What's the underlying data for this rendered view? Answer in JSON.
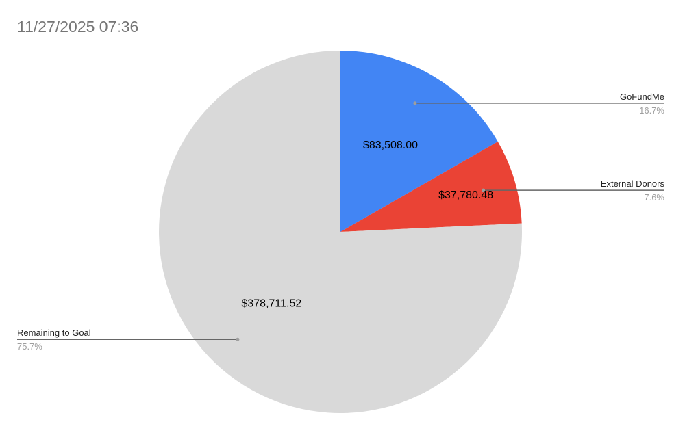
{
  "title": "11/27/2025 07:36",
  "chart_data": {
    "type": "pie",
    "title": "11/27/2025 07:36",
    "slices": [
      {
        "name": "GoFundMe",
        "value": 83508.0,
        "value_label": "$83,508.00",
        "percent_label": "16.7%",
        "color": "#4285f4",
        "legend_side": "right"
      },
      {
        "name": "External Donors",
        "value": 37780.48,
        "value_label": "$37,780.48",
        "percent_label": "7.6%",
        "color": "#ea4335",
        "legend_side": "right"
      },
      {
        "name": "Remaining to Goal",
        "value": 378711.52,
        "value_label": "$378,711.52",
        "percent_label": "75.7%",
        "color": "#d9d9d9",
        "legend_side": "left"
      }
    ],
    "start_angle": "12 o'clock",
    "direction": "clockwise",
    "legend_placement": "callouts"
  }
}
